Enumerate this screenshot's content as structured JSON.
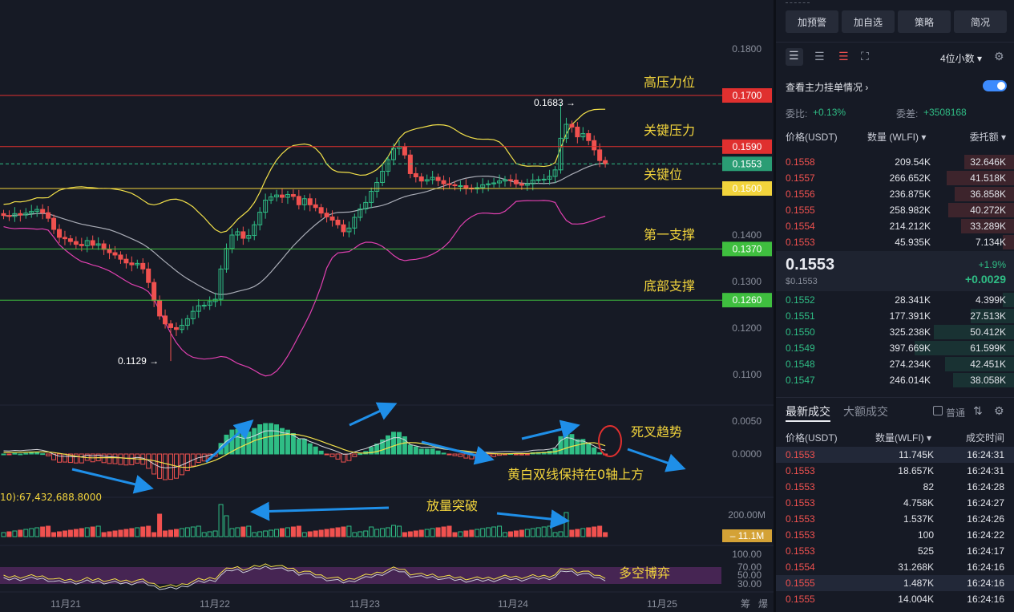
{
  "chart": {
    "y_axis_labels": [
      "0.1800",
      "0.1400",
      "0.1300",
      "0.1200",
      "0.1100"
    ],
    "macd_axis_labels": [
      "0.0050",
      "0.0000"
    ],
    "vol_axis_labels": [
      "200.00M"
    ],
    "rsi_axis_labels": [
      "100.00",
      "70.00",
      "50.00",
      "30.00"
    ],
    "x_axis_labels": [
      "11月21",
      "11月22",
      "11月23",
      "11月24",
      "11月25"
    ],
    "corner_labels": [
      "筹",
      "爆"
    ],
    "high_marker": "0.1683",
    "low_marker": "0.1129",
    "volume_ma_label": "10):67,432,688.8000",
    "levels": [
      {
        "name": "高压力位",
        "value": "0.1700",
        "color": "#e0302f"
      },
      {
        "name": "关键压力",
        "value": "0.1590",
        "color": "#e0302f"
      },
      {
        "name": "关键位",
        "value": "0.1500",
        "color": "#f2d43c"
      },
      {
        "name": "第一支撑",
        "value": "0.1370",
        "color": "#3fbf3f"
      },
      {
        "name": "底部支撑",
        "value": "0.1260",
        "color": "#3fbf3f"
      }
    ],
    "current_price_tag": "0.1553",
    "volume_tag": "11.1M",
    "annotations": {
      "death_cross": "死叉趋势",
      "dual_lines": "黄白双线保持在0轴上方",
      "volume_break": "放量突破",
      "bull_bear": "多空博弈"
    }
  },
  "panel": {
    "buttons": [
      "加预警",
      "加自选",
      "策略",
      "简况"
    ],
    "decimal_select": "4位小数",
    "main_orders_label": "查看主力挂单情况",
    "ratio_label": "委比:",
    "ratio_value": "+0.13%",
    "diff_label": "委差:",
    "diff_value": "+3508168",
    "book_headers": {
      "price": "价格(USDT)",
      "qty": "数量 (WLFI)",
      "amount": "委托额"
    },
    "asks": [
      {
        "price": "0.1558",
        "qty": "209.54K",
        "amount": "32.646K",
        "depth": 0.31
      },
      {
        "price": "0.1557",
        "qty": "266.652K",
        "amount": "41.518K",
        "depth": 0.42
      },
      {
        "price": "0.1556",
        "qty": "236.875K",
        "amount": "36.858K",
        "depth": 0.37
      },
      {
        "price": "0.1555",
        "qty": "258.982K",
        "amount": "40.272K",
        "depth": 0.41
      },
      {
        "price": "0.1554",
        "qty": "214.212K",
        "amount": "33.289K",
        "depth": 0.33
      },
      {
        "price": "0.1553",
        "qty": "45.935K",
        "amount": "7.134K",
        "depth": 0.07
      }
    ],
    "last_price": "0.1553",
    "last_price_usd": "$0.1553",
    "change_pct": "+1.9%",
    "change_abs": "+0.0029",
    "bids": [
      {
        "price": "0.1552",
        "qty": "28.341K",
        "amount": "4.399K",
        "depth": 0.07
      },
      {
        "price": "0.1551",
        "qty": "177.391K",
        "amount": "27.513K",
        "depth": 0.27
      },
      {
        "price": "0.1550",
        "qty": "325.238K",
        "amount": "50.412K",
        "depth": 0.5
      },
      {
        "price": "0.1549",
        "qty": "397.669K",
        "amount": "61.599K",
        "depth": 0.62
      },
      {
        "price": "0.1548",
        "qty": "274.234K",
        "amount": "42.451K",
        "depth": 0.43
      },
      {
        "price": "0.1547",
        "qty": "246.014K",
        "amount": "38.058K",
        "depth": 0.38
      }
    ],
    "trades_tabs": [
      "最新成交",
      "大额成交"
    ],
    "trades_option": "普通",
    "trades_headers": {
      "price": "价格(USDT)",
      "qty": "数量(WLFI)",
      "time": "成交时间"
    },
    "trades": [
      {
        "price": "0.1553",
        "qty": "11.745K",
        "time": "16:24:31",
        "side": "sell"
      },
      {
        "price": "0.1553",
        "qty": "18.657K",
        "time": "16:24:31",
        "side": "sell"
      },
      {
        "price": "0.1553",
        "qty": "82",
        "time": "16:24:28",
        "side": "sell"
      },
      {
        "price": "0.1553",
        "qty": "4.758K",
        "time": "16:24:27",
        "side": "sell"
      },
      {
        "price": "0.1553",
        "qty": "1.537K",
        "time": "16:24:26",
        "side": "sell"
      },
      {
        "price": "0.1553",
        "qty": "100",
        "time": "16:24:22",
        "side": "sell"
      },
      {
        "price": "0.1553",
        "qty": "525",
        "time": "16:24:17",
        "side": "sell"
      },
      {
        "price": "0.1554",
        "qty": "31.268K",
        "time": "16:24:16",
        "side": "sell"
      },
      {
        "price": "0.1555",
        "qty": "1.487K",
        "time": "16:24:16",
        "side": "sell"
      },
      {
        "price": "0.1555",
        "qty": "14.004K",
        "time": "16:24:16",
        "side": "sell"
      }
    ]
  },
  "colors": {
    "up": "#2fbd85",
    "down": "#f0514f",
    "accent": "#3d8bfd",
    "annotation": "#f2d43c"
  }
}
